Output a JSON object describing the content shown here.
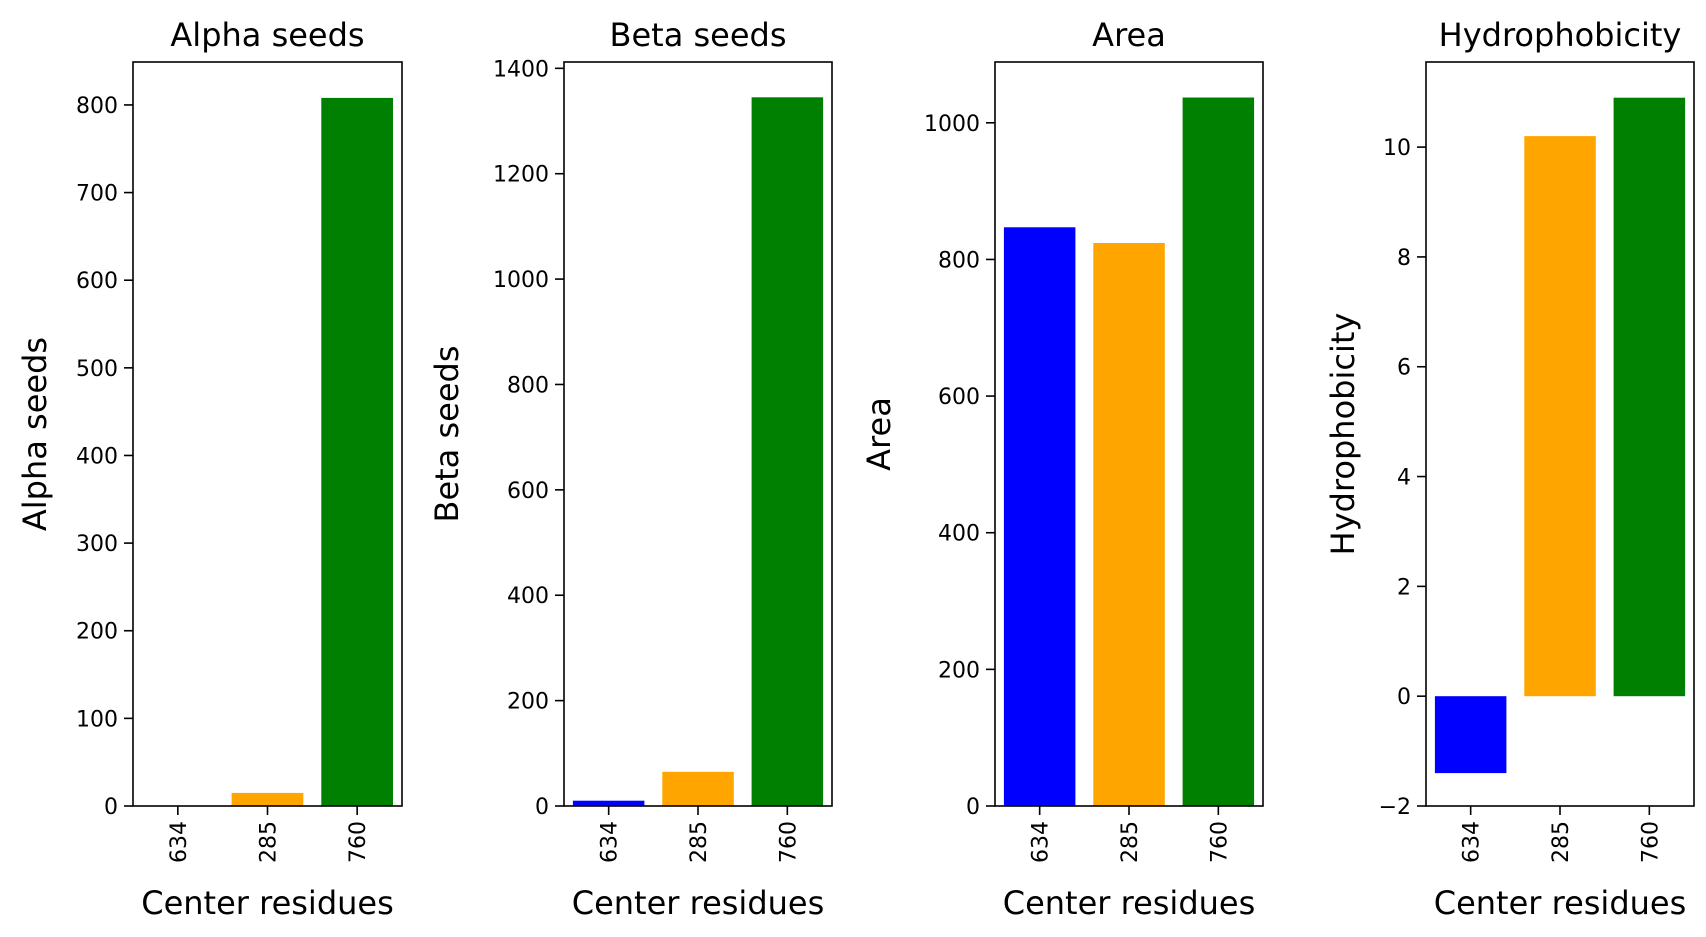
{
  "chart_data": [
    {
      "type": "bar",
      "title": "Alpha seeds",
      "xlabel": "Center residues",
      "ylabel": "Alpha seeds",
      "categories": [
        "634",
        "285",
        "760"
      ],
      "values": [
        0,
        15,
        808
      ],
      "colors": [
        "#0000ff",
        "#ffa500",
        "#008000"
      ],
      "ylim": [
        0,
        849
      ],
      "yticks": [
        0,
        100,
        200,
        300,
        400,
        500,
        600,
        700,
        800
      ],
      "grid": false
    },
    {
      "type": "bar",
      "title": "Beta seeds",
      "xlabel": "Center residues",
      "ylabel": "Beta seeds",
      "categories": [
        "634",
        "285",
        "760"
      ],
      "values": [
        10,
        65,
        1345
      ],
      "colors": [
        "#0000ff",
        "#ffa500",
        "#008000"
      ],
      "ylim": [
        0,
        1412
      ],
      "yticks": [
        0,
        200,
        400,
        600,
        800,
        1000,
        1200,
        1400
      ],
      "grid": false
    },
    {
      "type": "bar",
      "title": "Area",
      "xlabel": "Center residues",
      "ylabel": "Area",
      "categories": [
        "634",
        "285",
        "760"
      ],
      "values": [
        847,
        824,
        1037
      ],
      "colors": [
        "#0000ff",
        "#ffa500",
        "#008000"
      ],
      "ylim": [
        0,
        1089
      ],
      "yticks": [
        0,
        200,
        400,
        600,
        800,
        1000
      ],
      "grid": false
    },
    {
      "type": "bar",
      "title": "Hydrophobicity",
      "xlabel": "Center residues",
      "ylabel": "Hydrophobicity",
      "categories": [
        "634",
        "285",
        "760"
      ],
      "values": [
        -1.4,
        10.2,
        10.9
      ],
      "colors": [
        "#0000ff",
        "#ffa500",
        "#008000"
      ],
      "ylim": [
        -2,
        11.55
      ],
      "yticks": [
        -2,
        0,
        2,
        4,
        6,
        8,
        10
      ],
      "grid": false
    }
  ]
}
